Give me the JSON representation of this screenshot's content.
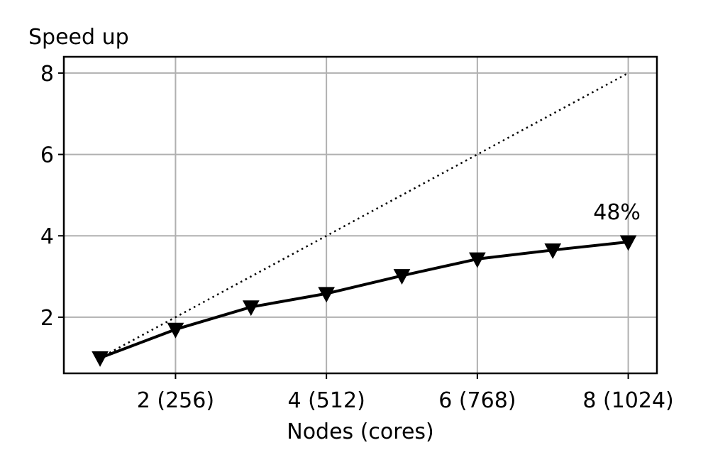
{
  "chart_data": {
    "type": "line",
    "xlabel": "Nodes (cores)",
    "ylabel": "Speed up",
    "xlim": [
      0.52,
      8.38
    ],
    "ylim": [
      0.62,
      8.4
    ],
    "xticks": [
      2,
      4,
      6,
      8
    ],
    "xtick_labels": [
      "2 (256)",
      "4 (512)",
      "6 (768)",
      "8 (1024)"
    ],
    "yticks": [
      2,
      4,
      6,
      8
    ],
    "ytick_labels": [
      "2",
      "4",
      "6",
      "8"
    ],
    "grid": true,
    "series": [
      {
        "style": "solid",
        "marker": "triangle-down",
        "color": "#000000",
        "x": [
          1,
          2,
          3,
          4,
          5,
          6,
          7,
          8
        ],
        "y": [
          1.0,
          1.7,
          2.25,
          2.58,
          3.02,
          3.43,
          3.65,
          3.85
        ]
      },
      {
        "style": "dotted",
        "color": "#000000",
        "x": [
          1,
          8
        ],
        "y": [
          1,
          8
        ]
      }
    ],
    "annotations": [
      {
        "text": "48%",
        "x": 8,
        "y": 3.85
      }
    ]
  }
}
